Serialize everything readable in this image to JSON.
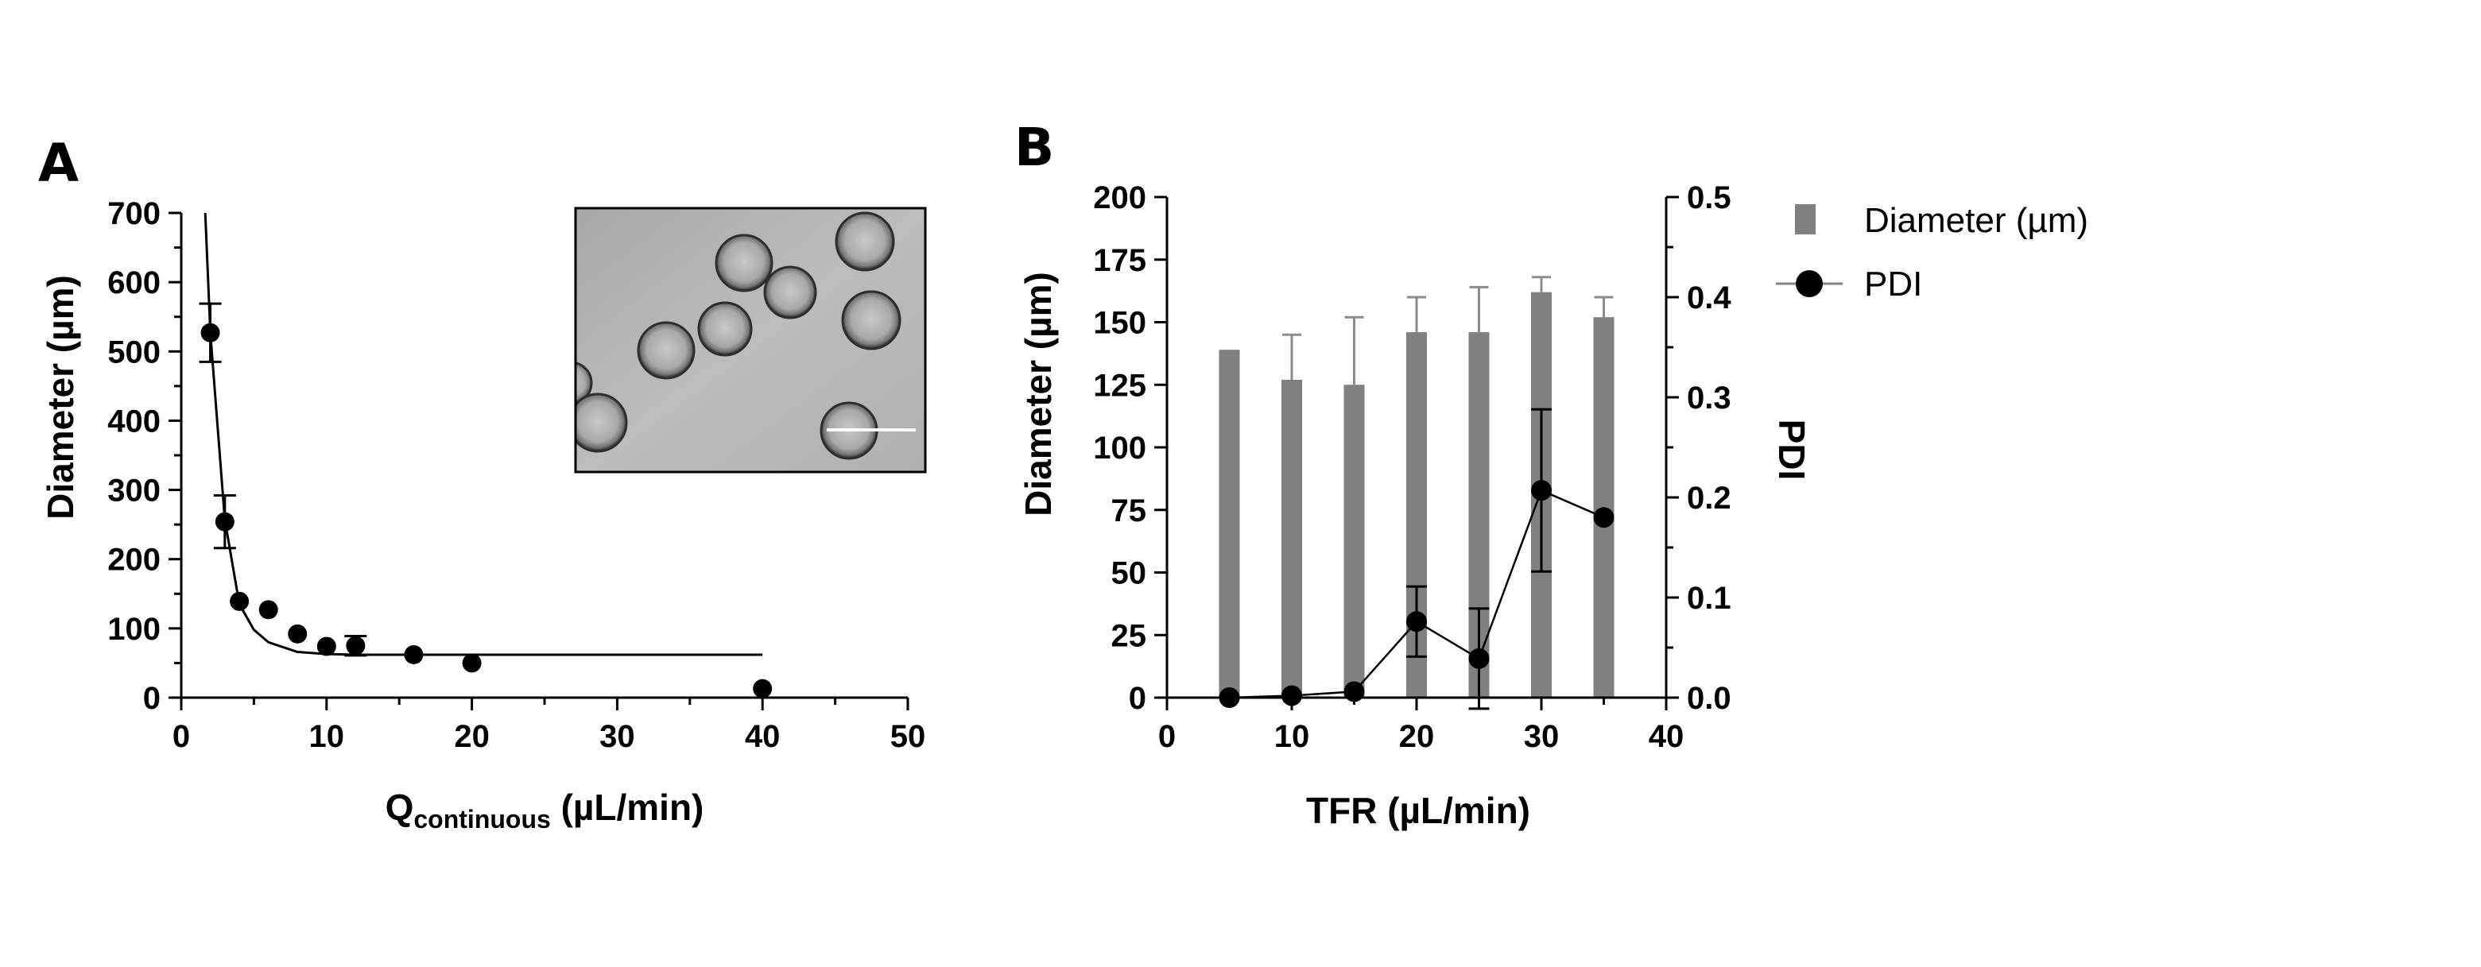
{
  "colors": {
    "bar_fill": "#808080",
    "bar_error": "#8c8c8c",
    "marker": "#000000",
    "legend_line": "#808080",
    "inset_background": "#b4b4b4",
    "axis": "#000000"
  },
  "inset": {
    "description_icon": "microscope-image-of-droplets",
    "scale_bar_color": "#ffffff"
  },
  "chart_data": [
    {
      "panel": "A",
      "type": "scatter",
      "title": "",
      "xlabel_main": "Q",
      "xlabel_sub": "continuous",
      "xlabel_unit": " (µL/min)",
      "ylabel": "Diameter (µm)",
      "xlim": [
        0,
        50
      ],
      "ylim": [
        0,
        700
      ],
      "xticks": [
        0,
        10,
        20,
        30,
        40,
        50
      ],
      "yticks": [
        0,
        100,
        200,
        300,
        400,
        500,
        600,
        700
      ],
      "grid": false,
      "points": [
        {
          "x": 2,
          "y": 527,
          "err": 42
        },
        {
          "x": 3,
          "y": 254,
          "err": 38
        },
        {
          "x": 4,
          "y": 139,
          "err": 0
        },
        {
          "x": 6,
          "y": 127,
          "err": 0
        },
        {
          "x": 8,
          "y": 92,
          "err": 0
        },
        {
          "x": 10,
          "y": 74,
          "err": 0
        },
        {
          "x": 12,
          "y": 75,
          "err": 14
        },
        {
          "x": 16,
          "y": 62,
          "err": 0
        },
        {
          "x": 20,
          "y": 50,
          "err": 0
        },
        {
          "x": 40,
          "y": 13,
          "err": 0
        }
      ],
      "fit_curve": {
        "model": "one-phase decay",
        "x_range": [
          1.65,
          40
        ],
        "x": [
          1.65,
          2,
          3,
          4,
          5,
          6,
          8,
          10,
          12,
          16,
          20,
          30,
          40
        ],
        "y": [
          700,
          527,
          257,
          135,
          98,
          80,
          66,
          63,
          62,
          62,
          62,
          62,
          62
        ]
      }
    },
    {
      "panel": "B",
      "type": "bar",
      "title": "",
      "xlabel": "TFR (µL/min)",
      "ylabel_left": "Diameter (µm)",
      "ylabel_right": "PDI",
      "xlim": [
        0,
        40
      ],
      "ylim_left": [
        0,
        200
      ],
      "ylim_right": [
        0,
        0.5
      ],
      "xticks": [
        0,
        10,
        20,
        30,
        40
      ],
      "yticks_left": [
        0,
        25,
        50,
        75,
        100,
        125,
        150,
        175,
        200
      ],
      "yticks_right": [
        "0.0",
        "0.1",
        "0.2",
        "0.3",
        "0.4",
        "0.5"
      ],
      "grid": false,
      "legend_placement": "right",
      "legend": [
        {
          "name": "Diameter (µm)",
          "marker": "square"
        },
        {
          "name": "PDI",
          "marker": "circle-line"
        }
      ],
      "series": [
        {
          "name": "Diameter (µm)",
          "kind": "bar",
          "axis": "left",
          "x": [
            5,
            10,
            15,
            20,
            25,
            30,
            35
          ],
          "values": [
            139,
            127,
            125,
            146,
            146,
            162,
            152
          ],
          "err": [
            0,
            18,
            27,
            14,
            18,
            6,
            8
          ]
        },
        {
          "name": "PDI",
          "kind": "line",
          "axis": "right",
          "x": [
            5,
            10,
            15,
            20,
            25,
            30,
            35
          ],
          "values": [
            0.0,
            0.002,
            0.006,
            0.076,
            0.039,
            0.207,
            0.18
          ],
          "err": [
            0,
            0,
            0,
            0.035,
            0.05,
            0.081,
            0
          ]
        }
      ]
    }
  ]
}
